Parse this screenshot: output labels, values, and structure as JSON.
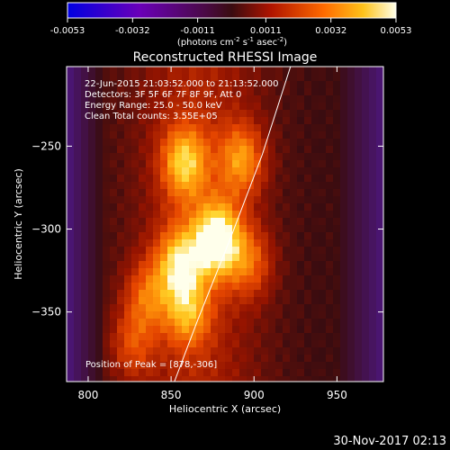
{
  "colorbar": {
    "ticks": [
      "-0.0053",
      "-0.0032",
      "-0.0011",
      "0.0011",
      "0.0032",
      "0.0053"
    ],
    "unit_parts": [
      "(photons cm",
      "-2",
      " s",
      "-1",
      " asec",
      "-2",
      ")"
    ],
    "range": [
      -0.0053,
      0.0053
    ]
  },
  "chart_data": {
    "type": "heatmap",
    "title": "Reconstructed RHESSI Image",
    "xlabel": "Heliocentric X (arcsec)",
    "ylabel": "Heliocentric Y (arcsec)",
    "xlim": [
      787,
      978
    ],
    "ylim": [
      -392,
      -202
    ],
    "x_ticks": [
      800,
      850,
      900,
      950
    ],
    "y_ticks": [
      -250,
      -300,
      -350
    ],
    "info_lines": [
      "22-Jun-2015 21:03:52.000 to 21:13:52.000",
      "Detectors: 3F 5F 6F 7F 8F 9F, Att 0",
      "Energy Range: 25.0 - 50.0 keV",
      "Clean    Total counts: 3.55E+05"
    ],
    "peak_label": "Position of Peak = [878,-306]",
    "peak": [
      878,
      -306
    ],
    "limb_curve": [
      [
        922,
        -202
      ],
      [
        905,
        -255
      ],
      [
        886,
        -305
      ],
      [
        866,
        -355
      ],
      [
        852,
        -392
      ]
    ],
    "sources": [
      {
        "x": 878,
        "y": -306,
        "peak": 1.0
      },
      {
        "x": 858,
        "y": -260,
        "peak": 0.7
      },
      {
        "x": 893,
        "y": -258,
        "peak": 0.6
      },
      {
        "x": 855,
        "y": -320,
        "peak": 0.7
      },
      {
        "x": 860,
        "y": -350,
        "peak": 0.55
      },
      {
        "x": 835,
        "y": -340,
        "peak": 0.45
      },
      {
        "x": 826,
        "y": -370,
        "peak": 0.4
      },
      {
        "x": 898,
        "y": -320,
        "peak": 0.45
      }
    ]
  },
  "footer": {
    "date": "30-Nov-2017 02:13"
  }
}
